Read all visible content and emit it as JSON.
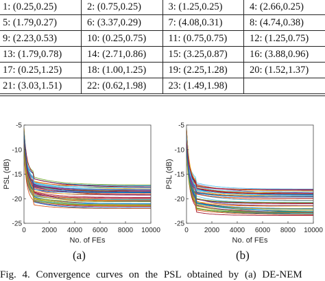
{
  "table": {
    "rows": [
      [
        "1: (0.25,0.25)",
        "2: (0.75,0.25)",
        "3: (1.25,0.25)",
        "4: (2.66,0.25)"
      ],
      [
        "5: (1.79,0.27)",
        "6: (3.37,0.29)",
        "7: (4.08,0.31)",
        "8: (4.74,0.38)"
      ],
      [
        "9: (2.23,0.53)",
        "10: (0.25,0.75)",
        "11: (0.75,0.75)",
        "12: (1.25,0.75)"
      ],
      [
        "13: (1.79,0.78)",
        "14: (2.71,0.86)",
        "15: (3.25,0.87)",
        "16: (3.88,0.96)"
      ],
      [
        "17: (0.25,1.25)",
        "18: (1.00,1.25)",
        "19: (2.25,1.28)",
        "20: (1.52,1.37)"
      ],
      [
        "21: (3.03,1.51)",
        "22: (0.62,1.98)",
        "23: (1.49,1.98)",
        ""
      ]
    ]
  },
  "chart_data": [
    {
      "type": "line",
      "panel": "(a)",
      "xlabel": "No. of FEs",
      "ylabel": "PSL (dB)",
      "xlim": [
        0,
        10000
      ],
      "ylim": [
        -25,
        -5
      ],
      "xticks": [
        "0",
        "2000",
        "4000",
        "6000",
        "8000",
        "10000"
      ],
      "yticks": [
        "-5",
        "-10",
        "-15",
        "-20",
        "-25"
      ],
      "grid": false,
      "curve_count": 50,
      "final_psl_range": [
        -22,
        -17
      ],
      "typical_curve": {
        "x": [
          0,
          300,
          1000,
          2000,
          4000,
          6000,
          8000,
          10000
        ],
        "y": [
          -8,
          -13,
          -16.8,
          -18.5,
          -19.5,
          -19.9,
          -20.1,
          -20.2
        ]
      }
    },
    {
      "type": "line",
      "panel": "(b)",
      "xlabel": "No. of FEs",
      "ylabel": "PSL (dB)",
      "xlim": [
        0,
        10000
      ],
      "ylim": [
        -25,
        -5
      ],
      "xticks": [
        "0",
        "2000",
        "4000",
        "6000",
        "8000",
        "10000"
      ],
      "yticks": [
        "-5",
        "-10",
        "-15",
        "-20",
        "-25"
      ],
      "grid": false,
      "curve_count": 50,
      "final_psl_range": [
        -23.5,
        -18
      ],
      "typical_curve": {
        "x": [
          0,
          300,
          1000,
          2000,
          4000,
          6000,
          8000,
          10000
        ],
        "y": [
          -7,
          -13,
          -16.5,
          -19,
          -20.6,
          -21.2,
          -21.5,
          -21.7
        ]
      }
    }
  ],
  "sub_labels": {
    "a": "(a)",
    "b": "(b)"
  },
  "caption": "Fig. 4.   Convergence curves on the PSL obtained by (a) DE-NEM"
}
